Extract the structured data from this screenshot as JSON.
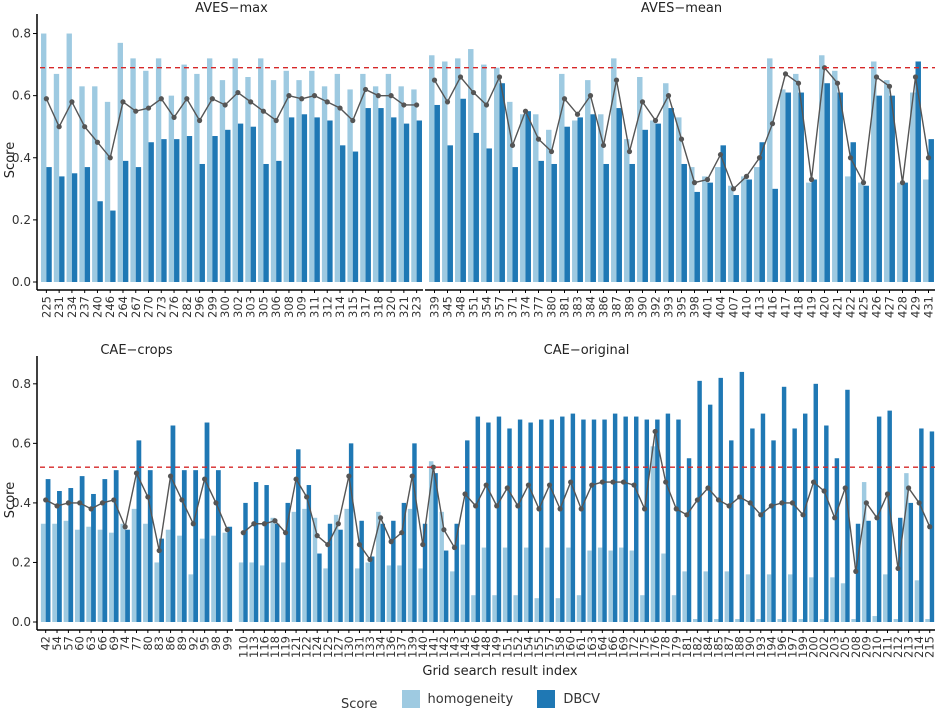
{
  "colors": {
    "homogeneity": "#9ecae1",
    "dbcv": "#1f78b4",
    "line": "#555555",
    "ref": "#d62728",
    "axis": "#000000"
  },
  "legend": {
    "title": "Score",
    "homogeneity": "homogeneity",
    "dbcv": "DBCV"
  },
  "labels": {
    "ylabel": "Score",
    "xlabel": "Grid search result index"
  },
  "chart_data": [
    {
      "type": "bar",
      "title": "AVES−max",
      "ylim": [
        0,
        0.85
      ],
      "yticks": [
        "0.0",
        "0.2",
        "0.4",
        "0.6",
        "0.8"
      ],
      "ref_line": 0.69,
      "categories": [
        "225",
        "231",
        "234",
        "237",
        "240",
        "246",
        "264",
        "267",
        "270",
        "273",
        "276",
        "282",
        "296",
        "299",
        "300",
        "302",
        "303",
        "305",
        "306",
        "308",
        "309",
        "311",
        "312",
        "314",
        "315",
        "317",
        "318",
        "320",
        "321",
        "323"
      ],
      "homogeneity": [
        0.8,
        0.67,
        0.8,
        0.63,
        0.63,
        0.58,
        0.77,
        0.72,
        0.68,
        0.72,
        0.6,
        0.7,
        0.67,
        0.72,
        0.65,
        0.72,
        0.66,
        0.72,
        0.65,
        0.68,
        0.65,
        0.68,
        0.63,
        0.67,
        0.62,
        0.67,
        0.63,
        0.67,
        0.63,
        0.62
      ],
      "dbcv": [
        0.37,
        0.34,
        0.35,
        0.37,
        0.26,
        0.23,
        0.39,
        0.37,
        0.45,
        0.46,
        0.46,
        0.47,
        0.38,
        0.47,
        0.49,
        0.51,
        0.5,
        0.38,
        0.39,
        0.53,
        0.54,
        0.53,
        0.52,
        0.44,
        0.42,
        0.56,
        0.56,
        0.53,
        0.51,
        0.52
      ],
      "mean": [
        0.59,
        0.5,
        0.58,
        0.5,
        0.45,
        0.4,
        0.58,
        0.55,
        0.56,
        0.59,
        0.53,
        0.59,
        0.52,
        0.59,
        0.57,
        0.61,
        0.58,
        0.55,
        0.52,
        0.6,
        0.59,
        0.6,
        0.58,
        0.56,
        0.52,
        0.62,
        0.6,
        0.6,
        0.57,
        0.57
      ]
    },
    {
      "type": "bar",
      "title": "AVES−mean",
      "ylim": [
        0,
        0.85
      ],
      "yticks": [],
      "ref_line": 0.69,
      "categories": [
        "339",
        "345",
        "348",
        "351",
        "354",
        "357",
        "371",
        "374",
        "377",
        "380",
        "381",
        "383",
        "384",
        "386",
        "387",
        "389",
        "390",
        "392",
        "393",
        "395",
        "398",
        "401",
        "404",
        "407",
        "410",
        "413",
        "416",
        "417",
        "418",
        "419",
        "420",
        "421",
        "422",
        "425",
        "426",
        "427",
        "428",
        "429",
        "431"
      ],
      "homogeneity": [
        0.73,
        0.71,
        0.72,
        0.75,
        0.7,
        0.69,
        0.58,
        0.54,
        0.54,
        0.49,
        0.67,
        0.52,
        0.65,
        0.54,
        0.72,
        0.46,
        0.66,
        0.52,
        0.64,
        0.53,
        0.37,
        0.34,
        0.37,
        0.31,
        0.34,
        0.37,
        0.72,
        0.62,
        0.67,
        0.32,
        0.73,
        0.68,
        0.34,
        0.32,
        0.71,
        0.65,
        0.32,
        0.61,
        0.33
      ],
      "dbcv": [
        0.57,
        0.44,
        0.59,
        0.48,
        0.43,
        0.64,
        0.37,
        0.55,
        0.39,
        0.38,
        0.5,
        0.53,
        0.54,
        0.38,
        0.56,
        0.38,
        0.49,
        0.51,
        0.56,
        0.38,
        0.29,
        0.32,
        0.44,
        0.28,
        0.33,
        0.45,
        0.3,
        0.61,
        0.61,
        0.33,
        0.64,
        0.61,
        0.45,
        0.31,
        0.6,
        0.6,
        0.32,
        0.71,
        0.46
      ],
      "mean": [
        0.65,
        0.58,
        0.66,
        0.61,
        0.57,
        0.66,
        0.44,
        0.55,
        0.46,
        0.42,
        0.59,
        0.54,
        0.6,
        0.44,
        0.65,
        0.42,
        0.58,
        0.52,
        0.6,
        0.46,
        0.32,
        0.33,
        0.41,
        0.3,
        0.34,
        0.4,
        0.51,
        0.67,
        0.64,
        0.33,
        0.69,
        0.64,
        0.4,
        0.32,
        0.66,
        0.63,
        0.32,
        0.66,
        0.4
      ]
    },
    {
      "type": "bar",
      "title": "CAE−crops",
      "ylim": [
        0,
        0.88
      ],
      "yticks": [
        "0.0",
        "0.2",
        "0.4",
        "0.6",
        "0.8"
      ],
      "ref_line": 0.52,
      "categories": [
        "42",
        "54",
        "57",
        "60",
        "63",
        "66",
        "69",
        "74",
        "77",
        "80",
        "83",
        "86",
        "89",
        "92",
        "95",
        "98",
        "99"
      ],
      "homogeneity": [
        0.33,
        0.33,
        0.34,
        0.31,
        0.32,
        0.31,
        0.3,
        0.33,
        0.38,
        0.33,
        0.2,
        0.31,
        0.29,
        0.16,
        0.28,
        0.29,
        0.3
      ],
      "dbcv": [
        0.48,
        0.44,
        0.45,
        0.49,
        0.43,
        0.48,
        0.51,
        0.31,
        0.61,
        0.51,
        0.28,
        0.66,
        0.51,
        0.51,
        0.67,
        0.51,
        0.32
      ],
      "mean": [
        0.41,
        0.39,
        0.4,
        0.4,
        0.38,
        0.4,
        0.41,
        0.32,
        0.5,
        0.42,
        0.24,
        0.49,
        0.41,
        0.33,
        0.48,
        0.4,
        0.31
      ]
    },
    {
      "type": "bar",
      "title": "CAE−original",
      "ylim": [
        0,
        0.88
      ],
      "yticks": [],
      "ref_line": 0.52,
      "categories": [
        "110",
        "113",
        "116",
        "118",
        "119",
        "121",
        "122",
        "124",
        "125",
        "127",
        "130",
        "131",
        "133",
        "134",
        "136",
        "137",
        "139",
        "140",
        "141",
        "142",
        "143",
        "145",
        "146",
        "148",
        "149",
        "151",
        "152",
        "154",
        "155",
        "157",
        "158",
        "160",
        "161",
        "163",
        "164",
        "166",
        "169",
        "172",
        "175",
        "176",
        "178",
        "179",
        "181",
        "182",
        "184",
        "185",
        "187",
        "188",
        "190",
        "193",
        "194",
        "196",
        "197",
        "199",
        "200",
        "202",
        "203",
        "205",
        "208",
        "209",
        "210",
        "211",
        "212",
        "213",
        "214",
        "215"
      ],
      "homogeneity": [
        0.2,
        0.2,
        0.19,
        0.35,
        0.2,
        0.37,
        0.38,
        0.35,
        0.18,
        0.36,
        0.38,
        0.18,
        0.2,
        0.37,
        0.19,
        0.19,
        0.38,
        0.18,
        0.54,
        0.37,
        0.17,
        0.26,
        0.09,
        0.25,
        0.09,
        0.25,
        0.09,
        0.25,
        0.08,
        0.25,
        0.08,
        0.25,
        0.09,
        0.24,
        0.25,
        0.24,
        0.25,
        0.24,
        0.09,
        0.59,
        0.23,
        0.09,
        0.17,
        0.01,
        0.17,
        0.01,
        0.17,
        0.01,
        0.16,
        0.01,
        0.16,
        0.01,
        0.16,
        0.01,
        0.15,
        0.01,
        0.15,
        0.13,
        0.01,
        0.47,
        0.02,
        0.16,
        0.01,
        0.5,
        0.14,
        0.01
      ],
      "dbcv": [
        0.4,
        0.47,
        0.46,
        0.33,
        0.4,
        0.58,
        0.46,
        0.23,
        0.33,
        0.31,
        0.6,
        0.34,
        0.22,
        0.33,
        0.34,
        0.4,
        0.6,
        0.33,
        0.5,
        0.24,
        0.33,
        0.61,
        0.69,
        0.67,
        0.69,
        0.65,
        0.68,
        0.67,
        0.68,
        0.68,
        0.69,
        0.7,
        0.68,
        0.68,
        0.68,
        0.7,
        0.69,
        0.69,
        0.68,
        0.68,
        0.7,
        0.68,
        0.55,
        0.81,
        0.73,
        0.82,
        0.61,
        0.84,
        0.65,
        0.7,
        0.61,
        0.79,
        0.65,
        0.7,
        0.8,
        0.66,
        0.55,
        0.78,
        0.33,
        0.34,
        0.69,
        0.71,
        0.35,
        0.4,
        0.65,
        0.64
      ],
      "mean": [
        0.3,
        0.33,
        0.33,
        0.34,
        0.3,
        0.48,
        0.42,
        0.29,
        0.26,
        0.33,
        0.49,
        0.26,
        0.21,
        0.35,
        0.27,
        0.3,
        0.49,
        0.26,
        0.52,
        0.31,
        0.25,
        0.43,
        0.39,
        0.46,
        0.39,
        0.45,
        0.39,
        0.46,
        0.38,
        0.46,
        0.38,
        0.47,
        0.38,
        0.46,
        0.47,
        0.47,
        0.47,
        0.46,
        0.38,
        0.64,
        0.47,
        0.38,
        0.36,
        0.41,
        0.45,
        0.41,
        0.39,
        0.42,
        0.4,
        0.36,
        0.39,
        0.4,
        0.4,
        0.36,
        0.47,
        0.44,
        0.35,
        0.45,
        0.17,
        0.4,
        0.35,
        0.43,
        0.18,
        0.45,
        0.4,
        0.32
      ]
    }
  ]
}
